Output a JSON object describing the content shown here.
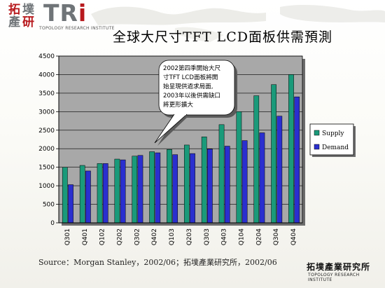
{
  "header": {
    "logo_chars": [
      "拓",
      "墣",
      "產",
      "研"
    ],
    "logo_tri": "TR",
    "logo_tri_last": "i",
    "logo_sub": "TOPOLOGY RESEARCH INSTITUTE",
    "title": "全球大尺寸TFT LCD面板供需預測"
  },
  "chart_data": {
    "type": "bar",
    "categories": [
      "Q301",
      "Q401",
      "Q102",
      "Q202",
      "Q302",
      "Q402",
      "Q103",
      "Q203",
      "Q303",
      "Q403",
      "Q104",
      "Q204",
      "Q304",
      "Q404"
    ],
    "series": [
      {
        "name": "Supply",
        "color": "#1a9a7a",
        "values": [
          1500,
          1550,
          1600,
          1720,
          1800,
          1920,
          1980,
          2100,
          2320,
          2650,
          3000,
          3430,
          3730,
          4000
        ]
      },
      {
        "name": "Demand",
        "color": "#2a2fcf",
        "values": [
          1030,
          1400,
          1600,
          1700,
          1820,
          1890,
          1840,
          1870,
          1990,
          2070,
          2220,
          2430,
          2880,
          3400
        ]
      }
    ],
    "ylim": [
      0,
      4500
    ],
    "yticks": [
      0,
      500,
      1000,
      1500,
      2000,
      2500,
      3000,
      3500,
      4000,
      4500
    ],
    "grid": true,
    "legend_position": "right",
    "annotation": [
      "2002第四季開始大尺",
      "寸TFT LCD面板將開",
      "始呈現供過求局面,",
      "2003年以後供需缺口",
      "將更形擴大"
    ],
    "plot_bg": "#a8a8a8"
  },
  "footer": {
    "source": "Source：Morgan Stanley，2002/06；拓墣產業研究所，2002/06",
    "logo": "拓墣產業研究所",
    "logo_sub": "TOPOLOGY RESEARCH INSTITUTE"
  }
}
